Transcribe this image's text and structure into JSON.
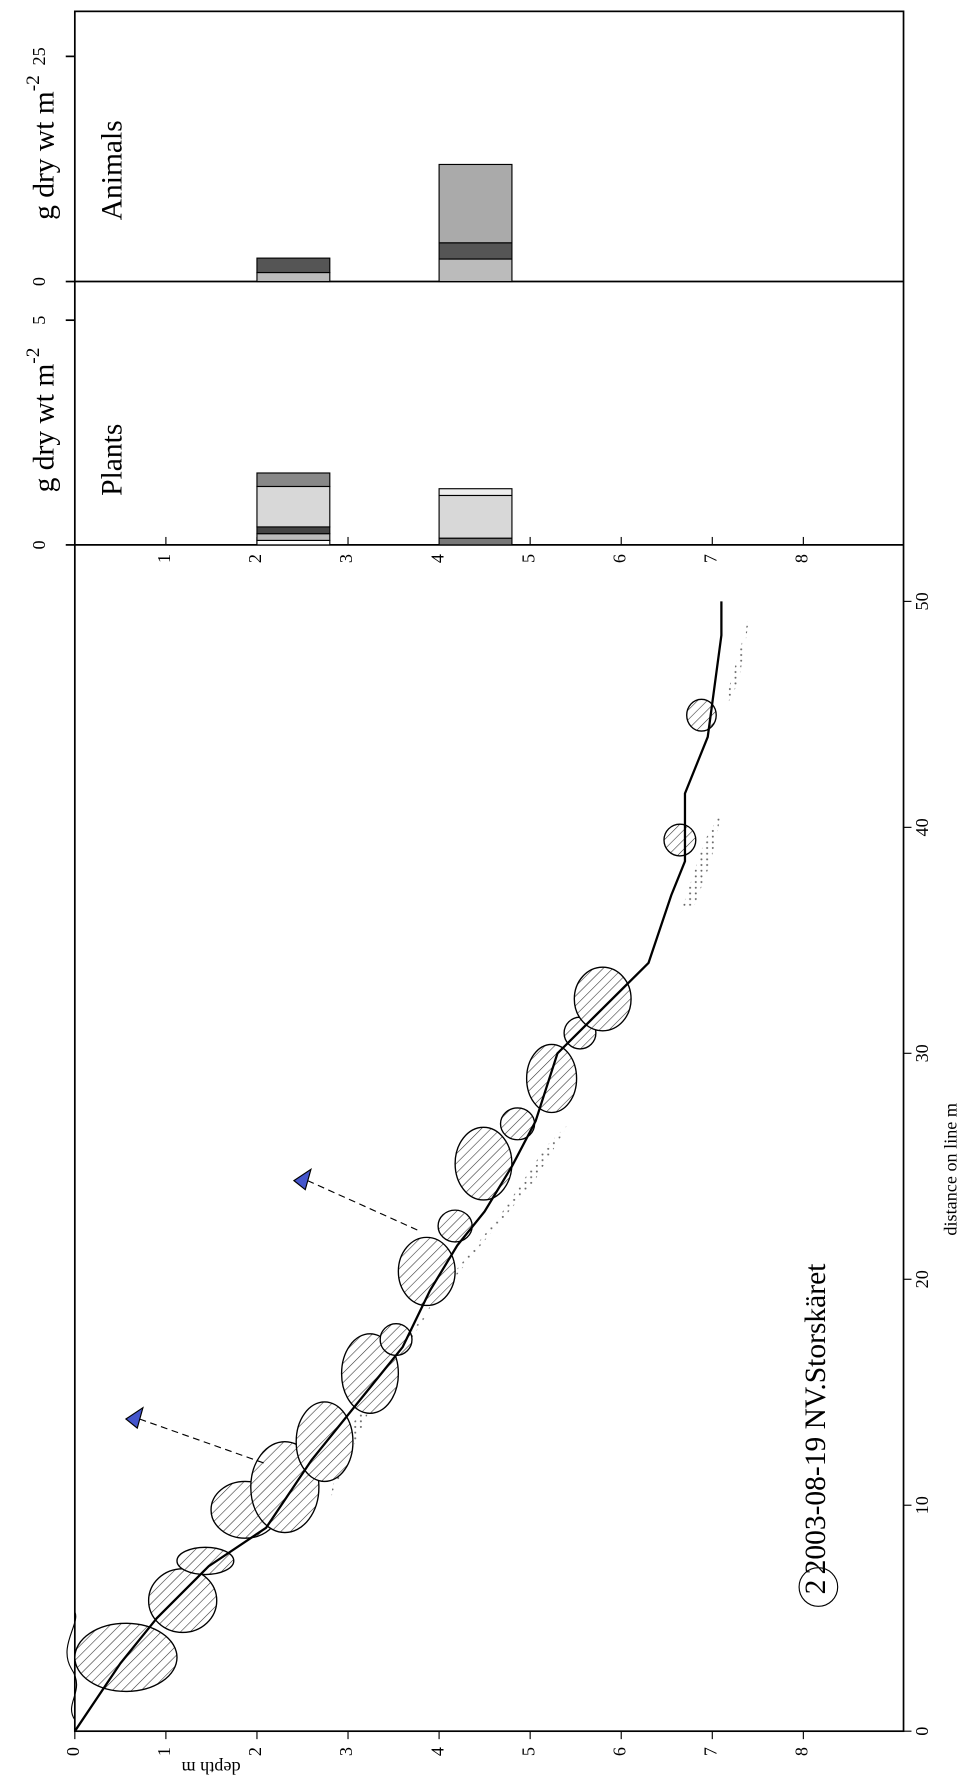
{
  "chart_data": [
    {
      "type": "line",
      "title": "2003-08-19 NV.Storskäret",
      "title_marker": "2",
      "xlabel": "distance on line m",
      "ylabel": "depth m",
      "x": [
        0,
        3,
        5,
        7.3,
        9,
        12,
        15,
        17,
        19.5,
        21.5,
        23,
        25,
        27,
        30,
        34,
        37,
        38.5,
        41.5,
        44,
        48.5,
        50
      ],
      "series": [
        {
          "color": "#000000",
          "values": [
            0,
            0.5,
            0.9,
            1.47,
            2.1,
            2.6,
            3.2,
            3.6,
            3.9,
            4.2,
            4.5,
            4.8,
            5.06,
            5.3,
            6.3,
            6.55,
            6.7,
            6.7,
            6.95,
            7.1,
            7.1
          ]
        }
      ],
      "xlim": [
        0,
        52.5
      ],
      "xticks": [
        0,
        10,
        20,
        30,
        40,
        50
      ],
      "ylim": [
        0,
        9.1
      ],
      "yticks": [
        0,
        1,
        2,
        3,
        4,
        5,
        6,
        7,
        8
      ]
    },
    {
      "type": "bar",
      "label": "Plants",
      "ylabel": "g dry wt m",
      "ylabel_exponent": "-2",
      "x": [
        2,
        4
      ],
      "xlim": [
        0,
        9.1
      ],
      "xticks": [
        1,
        2,
        3,
        4,
        5,
        6,
        7,
        8
      ],
      "ylim": [
        0,
        5.86
      ],
      "yticks": [
        0,
        5
      ],
      "series": [
        {
          "color": "#777777",
          "values": [
            0,
            0.15
          ]
        },
        {
          "color": "#ffffff",
          "values": [
            0.1,
            0
          ]
        },
        {
          "color": "#bbbbbb",
          "values": [
            0.15,
            0
          ]
        },
        {
          "color": "#444444",
          "values": [
            0.15,
            0
          ]
        },
        {
          "color": "#d8d8d8",
          "values": [
            0.9,
            0.95
          ]
        },
        {
          "color": "#eeeeee",
          "values": [
            0,
            0.15
          ]
        },
        {
          "color": "#888888",
          "values": [
            0.3,
            0
          ]
        }
      ]
    },
    {
      "type": "bar",
      "label": "Animals",
      "ylabel": "g dry wt m",
      "ylabel_exponent": "-2",
      "x": [
        2,
        4
      ],
      "xlim": [
        0,
        9.1
      ],
      "ylim": [
        0,
        30
      ],
      "yticks": [
        0,
        25
      ],
      "series": [
        {
          "color": "#bbbbbb",
          "values": [
            1.0,
            2.5
          ]
        },
        {
          "color": "#555555",
          "values": [
            1.6,
            1.8
          ]
        },
        {
          "color": "#aaaaaa",
          "values": [
            0,
            8.7
          ]
        }
      ]
    }
  ]
}
